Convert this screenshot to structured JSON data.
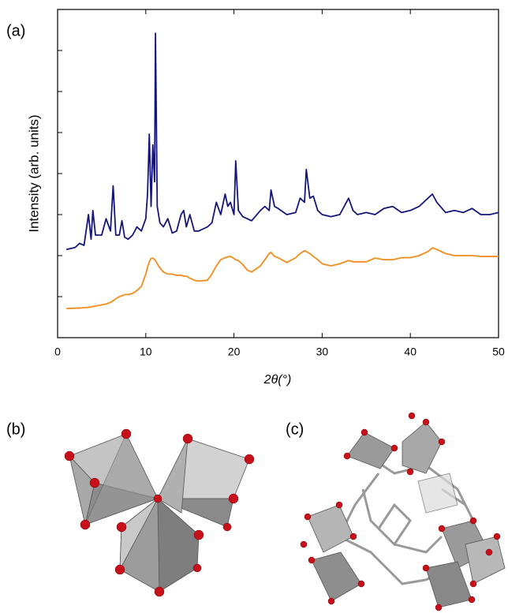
{
  "panel_labels": [
    "(a)",
    "(b)",
    "(c)"
  ],
  "chart_data": {
    "type": "line",
    "xlabel": "2θ(°)",
    "ylabel": "Intensity (arb. units)",
    "x": [
      1,
      2,
      2.5,
      3,
      3.5,
      3.8,
      4,
      4.3,
      5,
      5.5,
      6,
      6.3,
      6.6,
      7,
      7.3,
      7.6,
      8,
      8.5,
      9,
      9.5,
      10,
      10.2,
      10.4,
      10.6,
      10.8,
      11,
      11.1,
      11.3,
      11.6,
      12,
      12.5,
      13,
      13.5,
      14,
      14.3,
      14.6,
      15,
      15.5,
      16,
      17,
      17.5,
      18,
      18.5,
      19,
      19.3,
      19.6,
      20,
      20.2,
      20.5,
      21,
      21.5,
      22,
      23,
      23.5,
      24,
      24.2,
      24.6,
      25,
      26,
      27,
      27.5,
      28,
      28.2,
      28.6,
      29,
      29.5,
      30,
      31,
      32,
      33,
      33.5,
      34,
      35,
      36,
      37,
      38,
      39,
      40,
      41,
      42,
      42.5,
      43,
      44,
      45,
      46,
      47,
      48,
      49,
      50
    ],
    "series": [
      {
        "color": "#15157a",
        "values": [
          2.15,
          2.2,
          2.3,
          2.25,
          3.0,
          2.4,
          3.1,
          2.5,
          2.5,
          2.9,
          2.6,
          3.7,
          2.5,
          2.5,
          2.85,
          2.45,
          2.4,
          2.5,
          2.7,
          2.6,
          2.9,
          3.5,
          4.96,
          3.2,
          4.7,
          3.8,
          7.42,
          3.2,
          2.8,
          2.7,
          2.9,
          2.55,
          2.6,
          3.0,
          3.1,
          2.7,
          3.0,
          2.6,
          2.6,
          2.7,
          2.8,
          3.3,
          3.0,
          3.5,
          3.2,
          3.3,
          3.0,
          4.31,
          3.1,
          2.95,
          2.9,
          2.85,
          3.1,
          3.2,
          3.1,
          3.6,
          3.2,
          3.15,
          3.0,
          3.05,
          3.4,
          3.3,
          4.1,
          3.4,
          3.45,
          3.1,
          3.0,
          2.95,
          3.0,
          3.4,
          3.1,
          3.0,
          3.05,
          3.0,
          3.15,
          3.2,
          3.05,
          3.1,
          3.2,
          3.4,
          3.5,
          3.3,
          3.05,
          3.1,
          3.05,
          3.15,
          3.0,
          3.0,
          3.05
        ]
      },
      {
        "color": "#f28c1c",
        "values": [
          0.71,
          0.72,
          0.72,
          0.73,
          0.74,
          0.75,
          0.76,
          0.77,
          0.8,
          0.82,
          0.86,
          0.9,
          0.95,
          1.0,
          1.02,
          1.05,
          1.05,
          1.08,
          1.15,
          1.25,
          1.55,
          1.72,
          1.85,
          1.93,
          1.94,
          1.9,
          1.88,
          1.8,
          1.7,
          1.6,
          1.55,
          1.55,
          1.52,
          1.52,
          1.5,
          1.5,
          1.45,
          1.4,
          1.38,
          1.4,
          1.55,
          1.75,
          1.9,
          1.95,
          1.97,
          1.98,
          1.93,
          1.9,
          1.88,
          1.78,
          1.65,
          1.6,
          1.75,
          1.9,
          2.05,
          2.08,
          1.98,
          1.95,
          1.83,
          1.95,
          2.05,
          2.12,
          2.1,
          2.05,
          1.98,
          1.9,
          1.8,
          1.75,
          1.8,
          1.88,
          1.85,
          1.85,
          1.85,
          1.94,
          1.9,
          1.9,
          1.95,
          1.95,
          2.0,
          2.1,
          2.19,
          2.15,
          2.05,
          2.0,
          2.0,
          2.0,
          1.98,
          1.98,
          1.98
        ]
      }
    ],
    "xlim": [
      0,
      50
    ],
    "xticks": [
      0,
      10,
      20,
      30,
      40,
      50
    ],
    "ylim": [
      0,
      8
    ],
    "yticks": [
      1,
      2,
      3,
      4,
      5,
      6,
      7
    ]
  }
}
